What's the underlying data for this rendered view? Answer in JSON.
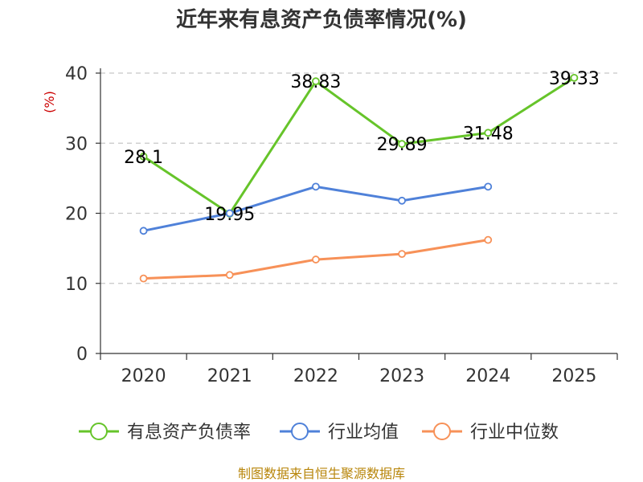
{
  "chart_data": {
    "type": "line",
    "title": "近年来有息资产负债率情况(%)",
    "ylabel": "(%)",
    "ylim": [
      0,
      40
    ],
    "yticks": [
      0,
      10,
      20,
      30,
      40
    ],
    "grid": true,
    "legend_placement": "bottom",
    "categories": [
      "2020",
      "2021",
      "2022",
      "2023",
      "2024",
      "2025"
    ],
    "series": [
      {
        "name": "有息资产负债率",
        "color": "#66c42a",
        "values": [
          28.1,
          19.95,
          38.83,
          29.89,
          31.48,
          39.33
        ],
        "labels": [
          "28.1",
          "19.95",
          "38.83",
          "29.89",
          "31.48",
          "39.33"
        ]
      },
      {
        "name": "行业均值",
        "color": "#4f81d9",
        "values": [
          17.5,
          20.0,
          23.8,
          21.8,
          23.8,
          null
        ]
      },
      {
        "name": "行业中位数",
        "color": "#f79158",
        "values": [
          10.7,
          11.2,
          13.4,
          14.2,
          16.2,
          null
        ]
      }
    ]
  },
  "source": "制图数据来自恒生聚源数据库"
}
